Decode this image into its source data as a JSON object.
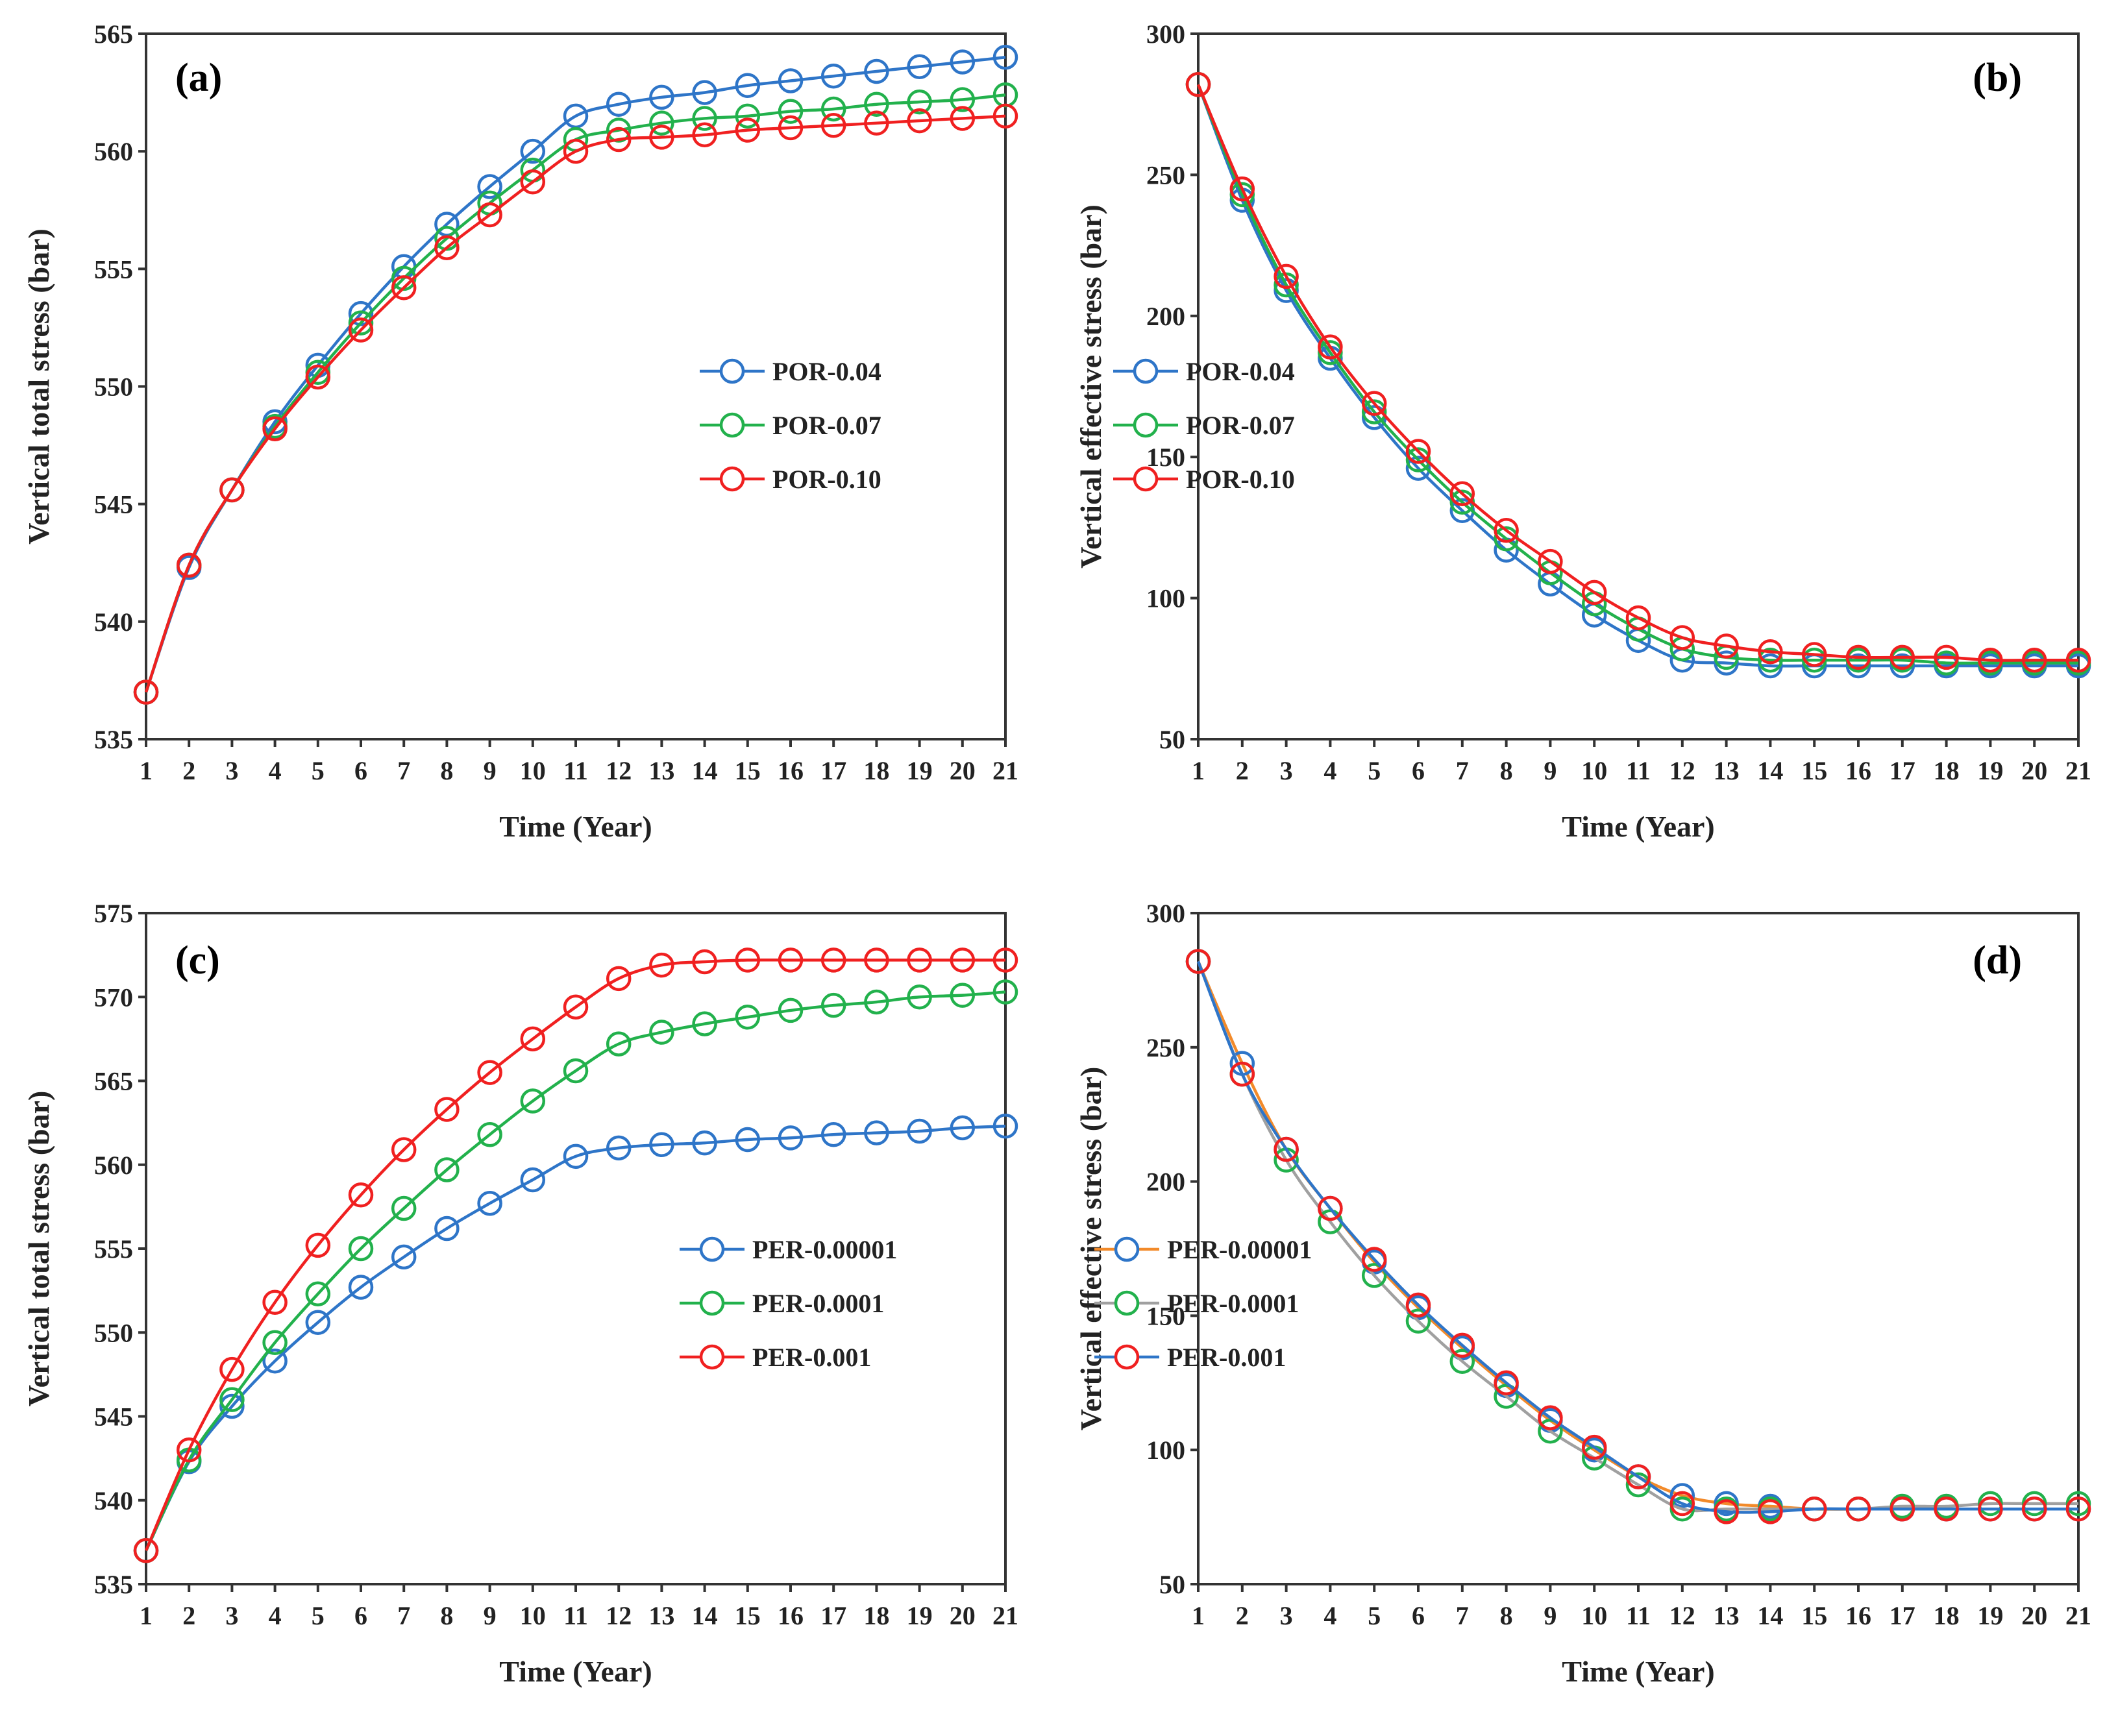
{
  "chart_data": [
    {
      "type": "line",
      "panel_label": "(a)",
      "xlabel": "Time (Year)",
      "ylabel": "Vertical total stress (bar)",
      "x": [
        1,
        2,
        3,
        4,
        5,
        6,
        7,
        8,
        9,
        10,
        11,
        12,
        13,
        14,
        15,
        16,
        17,
        18,
        19,
        20,
        21
      ],
      "ylim": [
        535,
        565
      ],
      "yticks": [
        535,
        540,
        545,
        550,
        555,
        560,
        565
      ],
      "legend_position": "center-right",
      "series": [
        {
          "name": "POR-0.04",
          "line_color": "#2e75c8",
          "marker_color": "#2e75c8",
          "values": [
            537,
            542.3,
            545.6,
            548.5,
            550.9,
            553.1,
            555.1,
            556.9,
            558.5,
            560.0,
            561.5,
            562.0,
            562.3,
            562.5,
            562.8,
            563.0,
            563.2,
            563.4,
            563.6,
            563.8,
            564.0
          ]
        },
        {
          "name": "POR-0.07",
          "line_color": "#22b14c",
          "marker_color": "#22b14c",
          "values": [
            537,
            542.4,
            545.6,
            548.3,
            550.6,
            552.7,
            554.6,
            556.3,
            557.8,
            559.2,
            560.5,
            560.9,
            561.2,
            561.4,
            561.5,
            561.7,
            561.8,
            562.0,
            562.1,
            562.2,
            562.4
          ]
        },
        {
          "name": "POR-0.10",
          "line_color": "#f02020",
          "marker_color": "#f02020",
          "values": [
            537,
            542.4,
            545.6,
            548.2,
            550.4,
            552.4,
            554.2,
            555.9,
            557.3,
            558.7,
            560.0,
            560.5,
            560.6,
            560.7,
            560.9,
            561.0,
            561.1,
            561.2,
            561.3,
            561.4,
            561.5
          ]
        }
      ]
    },
    {
      "type": "line",
      "panel_label": "(b)",
      "xlabel": "Time (Year)",
      "ylabel": "Vertical effective stress (bar)",
      "x": [
        1,
        2,
        3,
        4,
        5,
        6,
        7,
        8,
        9,
        10,
        11,
        12,
        13,
        14,
        15,
        16,
        17,
        18,
        19,
        20,
        21
      ],
      "ylim": [
        50,
        300
      ],
      "yticks": [
        50,
        100,
        150,
        200,
        250,
        300
      ],
      "legend_position": "center-right",
      "series": [
        {
          "name": "POR-0.04",
          "line_color": "#2e75c8",
          "marker_color": "#2e75c8",
          "values": [
            282,
            241,
            209,
            185,
            164,
            146,
            131,
            117,
            105,
            94,
            85,
            78,
            77,
            76,
            76,
            76,
            76,
            76,
            76,
            76,
            76
          ]
        },
        {
          "name": "POR-0.07",
          "line_color": "#22b14c",
          "marker_color": "#22b14c",
          "values": [
            282,
            243,
            211,
            187,
            166,
            149,
            134,
            121,
            109,
            98,
            89,
            82,
            79,
            78,
            78,
            78,
            78,
            77,
            77,
            77,
            77
          ]
        },
        {
          "name": "POR-0.10",
          "line_color": "#f02020",
          "marker_color": "#f02020",
          "values": [
            282,
            245,
            214,
            189,
            169,
            152,
            137,
            124,
            113,
            102,
            93,
            86,
            83,
            81,
            80,
            79,
            79,
            79,
            78,
            78,
            78
          ]
        }
      ]
    },
    {
      "type": "line",
      "panel_label": "(c)",
      "xlabel": "Time (Year)",
      "ylabel": "Vertical total stress (bar)",
      "x": [
        1,
        2,
        3,
        4,
        5,
        6,
        7,
        8,
        9,
        10,
        11,
        12,
        13,
        14,
        15,
        16,
        17,
        18,
        19,
        20,
        21
      ],
      "ylim": [
        535,
        575
      ],
      "yticks": [
        535,
        540,
        545,
        550,
        555,
        560,
        565,
        570,
        575
      ],
      "legend_position": "center-right",
      "series": [
        {
          "name": "PER-0.00001",
          "line_color": "#2e75c8",
          "marker_color": "#2e75c8",
          "values": [
            537,
            542.3,
            545.6,
            548.3,
            550.6,
            552.7,
            554.5,
            556.2,
            557.7,
            559.1,
            560.5,
            561.0,
            561.2,
            561.3,
            561.5,
            561.6,
            561.8,
            561.9,
            562.0,
            562.2,
            562.3
          ]
        },
        {
          "name": "PER-0.0001",
          "line_color": "#22b14c",
          "marker_color": "#22b14c",
          "values": [
            537,
            542.4,
            546.0,
            549.4,
            552.3,
            555.0,
            557.4,
            559.7,
            561.8,
            563.8,
            565.6,
            567.2,
            567.9,
            568.4,
            568.8,
            569.2,
            569.5,
            569.7,
            570.0,
            570.1,
            570.3
          ]
        },
        {
          "name": "PER-0.001",
          "line_color": "#f02020",
          "marker_color": "#f02020",
          "values": [
            537,
            543.0,
            547.8,
            551.8,
            555.2,
            558.2,
            560.9,
            563.3,
            565.5,
            567.5,
            569.4,
            571.1,
            571.9,
            572.1,
            572.2,
            572.2,
            572.2,
            572.2,
            572.2,
            572.2,
            572.2
          ]
        }
      ]
    },
    {
      "type": "line",
      "panel_label": "(d)",
      "xlabel": "Time (Year)",
      "ylabel": "Vertical effective stress (bar)",
      "x": [
        1,
        2,
        3,
        4,
        5,
        6,
        7,
        8,
        9,
        10,
        11,
        12,
        13,
        14,
        15,
        16,
        17,
        18,
        19,
        20,
        21
      ],
      "ylim": [
        50,
        300
      ],
      "yticks": [
        50,
        100,
        150,
        200,
        250,
        300
      ],
      "legend_position": "center-right",
      "series": [
        {
          "name": "PER-0.00001",
          "line_color": "#f28a2a",
          "marker_color": "#2e75c8",
          "values": [
            282,
            244,
            212,
            190,
            170,
            153,
            138,
            124,
            111,
            100,
            90,
            83,
            80,
            79,
            78,
            78,
            78,
            78,
            78,
            78,
            78
          ]
        },
        {
          "name": "PER-0.0001",
          "line_color": "#a0a0a0",
          "marker_color": "#22b14c",
          "values": [
            282,
            240,
            208,
            185,
            165,
            148,
            133,
            120,
            107,
            97,
            87,
            78,
            78,
            78,
            78,
            78,
            79,
            79,
            80,
            80,
            80
          ]
        },
        {
          "name": "PER-0.001",
          "line_color": "#2e75c8",
          "marker_color": "#f02020",
          "values": [
            282,
            240,
            212,
            190,
            171,
            154,
            139,
            125,
            112,
            101,
            90,
            80,
            77,
            77,
            78,
            78,
            78,
            78,
            78,
            78,
            78
          ]
        }
      ]
    }
  ]
}
